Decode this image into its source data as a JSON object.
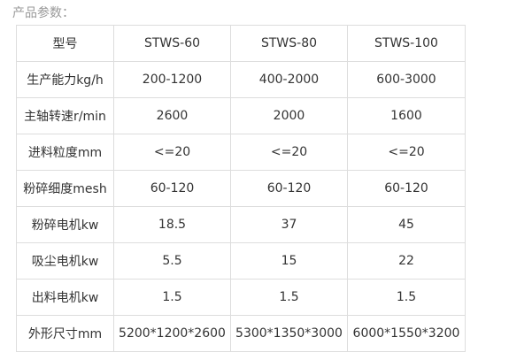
{
  "header": {
    "title": "产品参数："
  },
  "table": {
    "columns": [
      "型号",
      "STWS-60",
      "STWS-80",
      "STWS-100"
    ],
    "rows": [
      [
        "生产能力kg/h",
        "200-1200",
        "400-2000",
        "600-3000"
      ],
      [
        "主轴转速r/min",
        "2600",
        "2000",
        "1600"
      ],
      [
        "进料粒度mm",
        "<=20",
        "<=20",
        "<=20"
      ],
      [
        "粉碎细度mesh",
        "60-120",
        "60-120",
        "60-120"
      ],
      [
        "粉碎电机kw",
        "18.5",
        "37",
        "45"
      ],
      [
        "吸尘电机kw",
        "5.5",
        "15",
        "22"
      ],
      [
        "出料电机kw",
        "1.5",
        "1.5",
        "1.5"
      ],
      [
        "外形尺寸mm",
        "5200*1200*2600",
        "5300*1350*3000",
        "6000*1550*3200"
      ]
    ]
  }
}
